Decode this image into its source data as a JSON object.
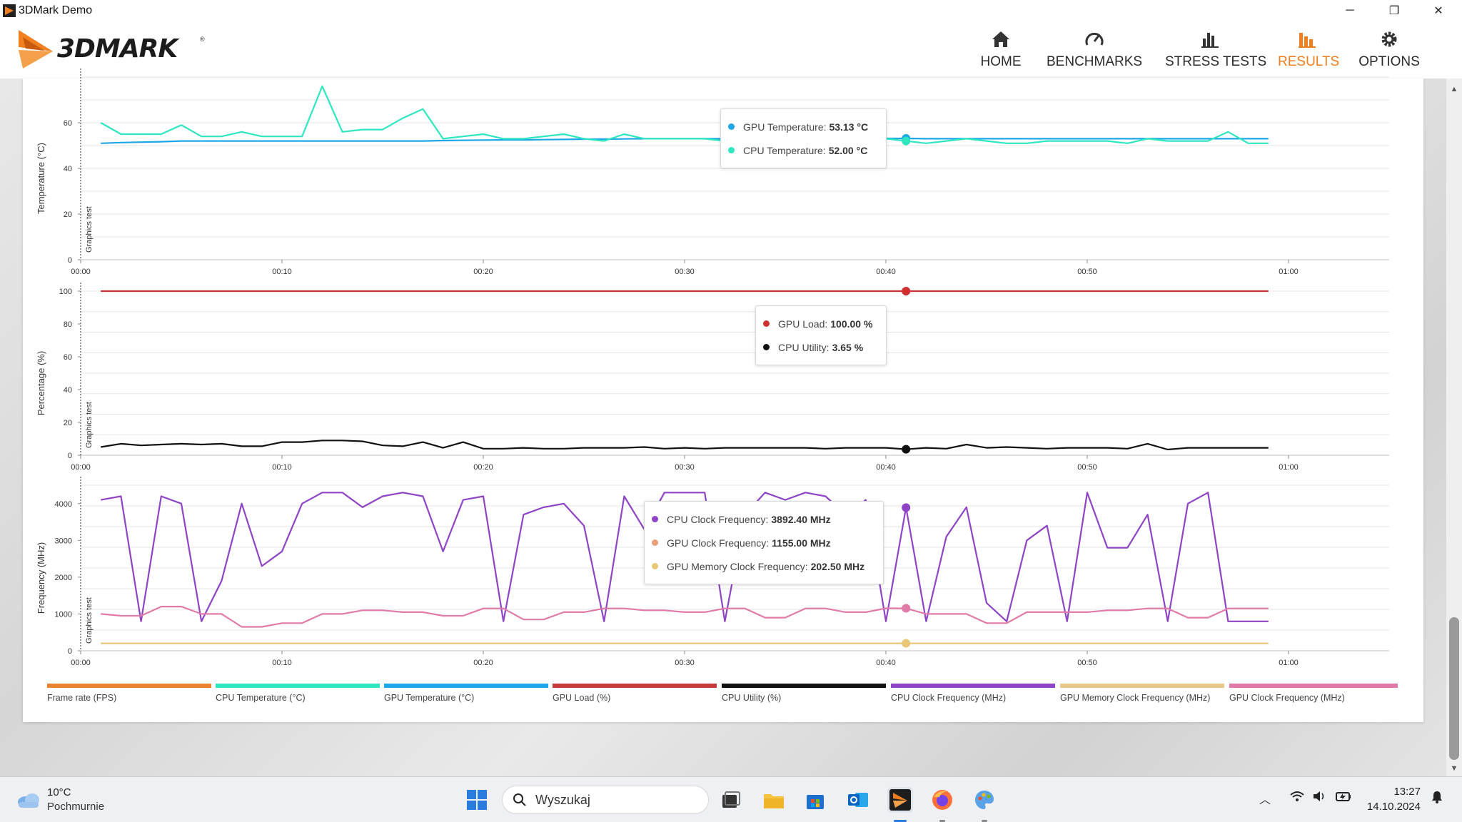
{
  "window": {
    "title": "3DMark Demo",
    "minimize_icon": "minimize-icon",
    "maximize_icon": "restore-icon",
    "close_icon": "close-icon"
  },
  "header": {
    "logo_text": "3DMARK",
    "logo_reg": "®",
    "nav": [
      {
        "label": "HOME",
        "icon": "home-icon",
        "active": false
      },
      {
        "label": "BENCHMARKS",
        "icon": "gauge-icon",
        "active": false
      },
      {
        "label": "STRESS TESTS",
        "icon": "bar-chart-icon",
        "active": false
      },
      {
        "label": "RESULTS",
        "icon": "results-icon",
        "active": true
      },
      {
        "label": "OPTIONS",
        "icon": "gear-icon",
        "active": false
      }
    ],
    "accent_color": "#f07f1f"
  },
  "chart_data": [
    {
      "type": "line",
      "ylabel": "Temperature (°C)",
      "section_label": "Graphics test",
      "ylim": [
        0,
        80
      ],
      "yticks": [
        0,
        20,
        40,
        60
      ],
      "xticks": [
        "00:00",
        "00:10",
        "00:20",
        "00:30",
        "00:40",
        "00:50",
        "01:00"
      ],
      "xlim_seconds": [
        0,
        65
      ],
      "x_seconds": [
        1,
        2,
        3,
        4,
        5,
        6,
        7,
        8,
        9,
        10,
        11,
        12,
        13,
        14,
        15,
        16,
        17,
        18,
        19,
        20,
        21,
        22,
        23,
        24,
        25,
        26,
        27,
        28,
        29,
        30,
        31,
        32,
        33,
        34,
        35,
        36,
        37,
        38,
        39,
        40,
        41,
        42,
        43,
        44,
        45,
        46,
        47,
        48,
        49,
        50,
        51,
        52,
        53,
        54,
        55,
        56,
        57,
        58,
        59
      ],
      "series": [
        {
          "name": "GPU Temperature",
          "color": "#1ea7e6",
          "values": [
            51,
            51.3,
            51.5,
            51.7,
            52,
            52,
            52,
            52,
            52,
            52,
            52,
            52,
            52,
            52,
            52,
            52,
            52,
            52.2,
            52.3,
            52.4,
            52.5,
            52.5,
            52.6,
            52.7,
            52.8,
            52.8,
            52.9,
            53,
            53,
            53,
            53,
            53,
            53,
            53,
            53,
            53.1,
            53.1,
            53.1,
            53.1,
            53.13,
            53.13,
            53,
            53,
            53,
            53,
            53,
            53,
            53,
            53,
            53,
            53,
            53,
            53,
            53,
            53,
            53,
            53,
            53,
            53
          ]
        },
        {
          "name": "CPU Temperature",
          "color": "#2ee6c0",
          "values": [
            60,
            55,
            55,
            55,
            59,
            54,
            54,
            56,
            54,
            54,
            54,
            76,
            56,
            57,
            57,
            62,
            66,
            53,
            54,
            55,
            53,
            53,
            54,
            55,
            53,
            52,
            55,
            53,
            53,
            53,
            53,
            52,
            53,
            53,
            54,
            53,
            53,
            53,
            53,
            53,
            52,
            51,
            52,
            53,
            52,
            51,
            51,
            52,
            52,
            52,
            52,
            51,
            53,
            52,
            52,
            52,
            56,
            51,
            51
          ]
        }
      ],
      "tooltip": [
        {
          "label": "GPU Temperature:",
          "value": "53.13 °C",
          "color": "#1ea7e6"
        },
        {
          "label": "CPU Temperature:",
          "value": "52.00 °C",
          "color": "#2ee6c0"
        }
      ]
    },
    {
      "type": "line",
      "ylabel": "Percentage (%)",
      "section_label": "Graphics test",
      "ylim": [
        0,
        100
      ],
      "yticks": [
        0,
        20,
        40,
        60,
        80,
        100
      ],
      "xticks": [
        "00:00",
        "00:10",
        "00:20",
        "00:30",
        "00:40",
        "00:50",
        "01:00"
      ],
      "xlim_seconds": [
        0,
        65
      ],
      "x_seconds": [
        1,
        2,
        3,
        4,
        5,
        6,
        7,
        8,
        9,
        10,
        11,
        12,
        13,
        14,
        15,
        16,
        17,
        18,
        19,
        20,
        21,
        22,
        23,
        24,
        25,
        26,
        27,
        28,
        29,
        30,
        31,
        32,
        33,
        34,
        35,
        36,
        37,
        38,
        39,
        40,
        41,
        42,
        43,
        44,
        45,
        46,
        47,
        48,
        49,
        50,
        51,
        52,
        53,
        54,
        55,
        56,
        57,
        58,
        59
      ],
      "series": [
        {
          "name": "GPU Load",
          "color": "#d03030",
          "values": [
            100,
            100,
            100,
            100,
            100,
            100,
            100,
            100,
            100,
            100,
            100,
            100,
            100,
            100,
            100,
            100,
            100,
            100,
            100,
            100,
            100,
            100,
            100,
            100,
            100,
            100,
            100,
            100,
            100,
            100,
            100,
            100,
            100,
            100,
            100,
            100,
            100,
            100,
            100,
            100,
            100,
            100,
            100,
            100,
            100,
            100,
            100,
            100,
            100,
            100,
            100,
            100,
            100,
            100,
            100,
            100,
            100,
            100,
            100
          ]
        },
        {
          "name": "CPU Utility",
          "color": "#111111",
          "values": [
            5,
            7,
            6,
            6.5,
            7,
            6.5,
            7,
            5.5,
            5.5,
            8,
            8,
            9,
            9,
            8.5,
            6,
            5.5,
            8,
            4.5,
            8,
            4,
            4,
            4.5,
            4,
            4,
            4.5,
            4.5,
            4.5,
            5,
            4,
            4.5,
            4,
            4.5,
            4.5,
            4.5,
            4.5,
            4.5,
            4,
            4.5,
            4.5,
            4.5,
            3.65,
            4.5,
            4,
            6.5,
            4.5,
            5,
            4.5,
            4,
            4.5,
            4.5,
            4.5,
            4,
            7,
            3.5,
            4.5,
            4.5,
            4.5,
            4.5,
            4.5
          ]
        }
      ],
      "tooltip": [
        {
          "label": "GPU Load:",
          "value": "100.00 %",
          "color": "#d03030"
        },
        {
          "label": "CPU Utility:",
          "value": "3.65 %",
          "color": "#111111"
        }
      ]
    },
    {
      "type": "line",
      "ylabel": "Frequency (MHz)",
      "section_label": "Graphics test",
      "ylim": [
        0,
        4500
      ],
      "yticks": [
        0,
        1000,
        2000,
        3000,
        4000
      ],
      "xticks": [
        "00:00",
        "00:10",
        "00:20",
        "00:30",
        "00:40",
        "00:50",
        "01:00"
      ],
      "xlim_seconds": [
        0,
        65
      ],
      "x_seconds": [
        1,
        2,
        3,
        4,
        5,
        6,
        7,
        8,
        9,
        10,
        11,
        12,
        13,
        14,
        15,
        16,
        17,
        18,
        19,
        20,
        21,
        22,
        23,
        24,
        25,
        26,
        27,
        28,
        29,
        30,
        31,
        32,
        33,
        34,
        35,
        36,
        37,
        38,
        39,
        40,
        41,
        42,
        43,
        44,
        45,
        46,
        47,
        48,
        49,
        50,
        51,
        52,
        53,
        54,
        55,
        56,
        57,
        58,
        59
      ],
      "series": [
        {
          "name": "CPU Clock Frequency",
          "color": "#8e44c4",
          "values": [
            4100,
            4200,
            800,
            4200,
            4000,
            800,
            1900,
            4000,
            2300,
            2700,
            4000,
            4300,
            4300,
            3900,
            4200,
            4300,
            4200,
            2700,
            4100,
            4200,
            800,
            3700,
            3900,
            4000,
            3400,
            800,
            4200,
            3300,
            4300,
            4300,
            4300,
            800,
            3700,
            4300,
            4100,
            4300,
            4200,
            3700,
            4100,
            800,
            3892,
            800,
            3100,
            3900,
            1300,
            800,
            3000,
            3400,
            800,
            4300,
            2800,
            2800,
            3700,
            800,
            4000,
            4300,
            800,
            800,
            800
          ]
        },
        {
          "name": "GPU Clock Frequency",
          "color": "#e07aa8",
          "values": [
            1000,
            950,
            950,
            1200,
            1200,
            1000,
            1000,
            650,
            650,
            750,
            750,
            1000,
            1000,
            1100,
            1100,
            1050,
            1050,
            950,
            950,
            1150,
            1150,
            850,
            850,
            1050,
            1050,
            1150,
            1150,
            1100,
            1100,
            1050,
            1050,
            1150,
            1150,
            900,
            900,
            1150,
            1150,
            1050,
            1050,
            1155,
            1155,
            1000,
            1000,
            1000,
            750,
            750,
            1050,
            1050,
            1050,
            1050,
            1100,
            1100,
            1150,
            1150,
            900,
            900,
            1150,
            1150,
            1150
          ]
        },
        {
          "name": "GPU Memory Clock Frequency",
          "color": "#e8c878",
          "values": [
            202.5,
            202.5,
            202.5,
            202.5,
            202.5,
            202.5,
            202.5,
            202.5,
            202.5,
            202.5,
            202.5,
            202.5,
            202.5,
            202.5,
            202.5,
            202.5,
            202.5,
            202.5,
            202.5,
            202.5,
            202.5,
            202.5,
            202.5,
            202.5,
            202.5,
            202.5,
            202.5,
            202.5,
            202.5,
            202.5,
            202.5,
            202.5,
            202.5,
            202.5,
            202.5,
            202.5,
            202.5,
            202.5,
            202.5,
            202.5,
            202.5,
            202.5,
            202.5,
            202.5,
            202.5,
            202.5,
            202.5,
            202.5,
            202.5,
            202.5,
            202.5,
            202.5,
            202.5,
            202.5,
            202.5,
            202.5,
            202.5,
            202.5,
            202.5
          ]
        }
      ],
      "tooltip": [
        {
          "label": "CPU Clock Frequency:",
          "value": "3892.40 MHz",
          "color": "#8e44c4"
        },
        {
          "label": "GPU Clock Frequency:",
          "value": "1155.00 MHz",
          "color": "#e8a07a"
        },
        {
          "label": "GPU Memory Clock Frequency:",
          "value": "202.50 MHz",
          "color": "#e8c878"
        }
      ]
    }
  ],
  "cursor_seconds": 41,
  "legend": [
    {
      "label": "Frame rate (FPS)",
      "color": "#e8822f"
    },
    {
      "label": "CPU Temperature (°C)",
      "color": "#2ee6c0"
    },
    {
      "label": "GPU Temperature (°C)",
      "color": "#1ea7e6"
    },
    {
      "label": "GPU Load (%)",
      "color": "#c63a3a"
    },
    {
      "label": "CPU Utility (%)",
      "color": "#111111"
    },
    {
      "label": "CPU Clock Frequency (MHz)",
      "color": "#8e44c4"
    },
    {
      "label": "GPU Memory Clock Frequency (MHz)",
      "color": "#e8c88a"
    },
    {
      "label": "GPU Clock Frequency (MHz)",
      "color": "#e07aa8"
    }
  ],
  "taskbar": {
    "weather_temp": "10°C",
    "weather_cond": "Pochmurnie",
    "search_placeholder": "Wyszukaj",
    "time": "13:27",
    "date": "14.10.2024"
  }
}
